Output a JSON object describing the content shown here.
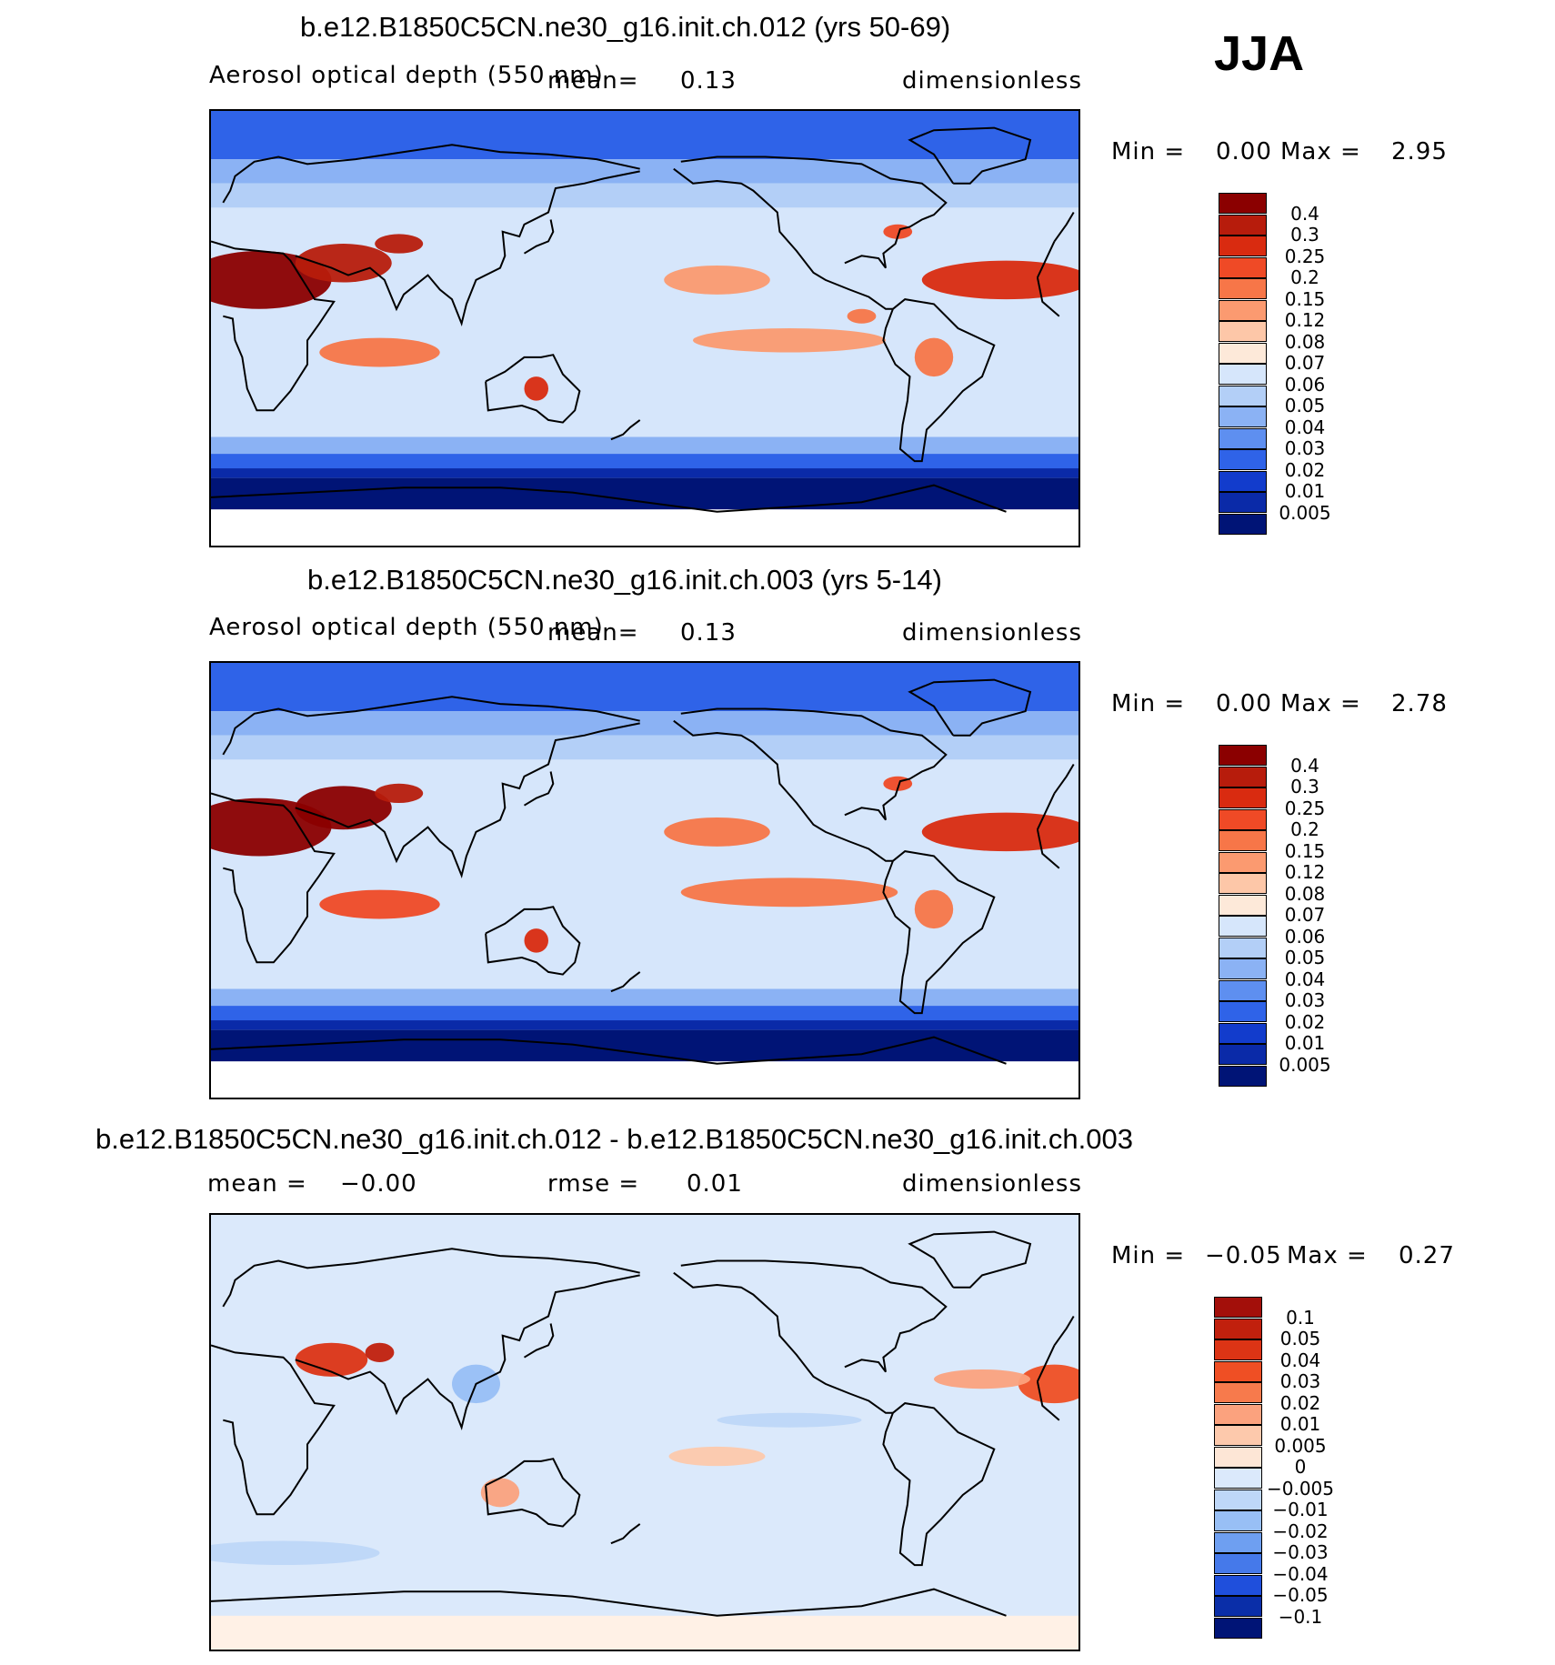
{
  "season": "JJA",
  "panels": [
    {
      "title": "b.e12.B1850C5CN.ne30_g16.init.ch.012 (yrs 50-69)",
      "variable": "Aerosol optical depth (550 nm)",
      "mean_label": "mean=",
      "mean_value": "0.13",
      "units": "dimensionless",
      "min_label": "Min =",
      "min_value": "0.00",
      "max_label": "Max =",
      "max_value": "2.95",
      "map_name": "Global map of aerosol optical depth, case 012"
    },
    {
      "title": "b.e12.B1850C5CN.ne30_g16.init.ch.003 (yrs 5-14)",
      "variable": "Aerosol optical depth (550 nm)",
      "mean_label": "mean=",
      "mean_value": "0.13",
      "units": "dimensionless",
      "min_label": "Min =",
      "min_value": "0.00",
      "max_label": "Max =",
      "max_value": "2.78",
      "map_name": "Global map of aerosol optical depth, case 003"
    },
    {
      "title": "b.e12.B1850C5CN.ne30_g16.init.ch.012 - b.e12.B1850C5CN.ne30_g16.init.ch.003",
      "mean_label": "mean =",
      "mean_value": "−0.00",
      "rmse_label": "rmse =",
      "rmse_value": "0.01",
      "units": "dimensionless",
      "min_label": "Min =",
      "min_value": "−0.05",
      "max_label": "Max =",
      "max_value": "0.27",
      "map_name": "Global map of difference 012 minus 003"
    }
  ],
  "colorbars": {
    "aod": {
      "levels": [
        "0.4",
        "0.3",
        "0.25",
        "0.2",
        "0.15",
        "0.12",
        "0.08",
        "0.07",
        "0.06",
        "0.05",
        "0.04",
        "0.03",
        "0.02",
        "0.01",
        "0.005"
      ],
      "colors": [
        "#8b0000",
        "#b71c0c",
        "#d92b10",
        "#ef4a26",
        "#f77648",
        "#fb9a70",
        "#fdc7a8",
        "#fde9d9",
        "#d6e6fb",
        "#b3cff7",
        "#8bb2f4",
        "#5e8ff0",
        "#2f63e8",
        "#123ccc",
        "#0a2aa8",
        "#001476"
      ]
    },
    "diff": {
      "levels": [
        "0.1",
        "0.05",
        "0.04",
        "0.03",
        "0.02",
        "0.01",
        "0.005",
        "0",
        "−0.005",
        "−0.01",
        "−0.02",
        "−0.03",
        "−0.04",
        "−0.05",
        "−0.1"
      ],
      "colors": [
        "#a30f0a",
        "#c1200d",
        "#dc3415",
        "#ef4f24",
        "#f77a4c",
        "#fba27e",
        "#fdc9ac",
        "#fde6d6",
        "#dbe9fb",
        "#bed7f8",
        "#98bff5",
        "#6e9ff1",
        "#4579ea",
        "#1f4fdc",
        "#0a2ea8",
        "#001476"
      ]
    }
  },
  "map_fields": {
    "case012": [
      {
        "lon": -150,
        "lat": 20,
        "rx": 22,
        "ry": 6,
        "level": 10
      },
      {
        "lon": -30,
        "lat": 20,
        "rx": 35,
        "ry": 8,
        "level": 13
      },
      {
        "lon": -120,
        "lat": -5,
        "rx": 40,
        "ry": 5,
        "level": 10
      },
      {
        "lon": 20,
        "lat": 20,
        "rx": 30,
        "ry": 12,
        "level": 15
      },
      {
        "lon": 55,
        "lat": 27,
        "rx": 20,
        "ry": 8,
        "level": 14
      },
      {
        "lon": 78,
        "lat": 35,
        "rx": 10,
        "ry": 4,
        "level": 14
      },
      {
        "lon": 70,
        "lat": -10,
        "rx": 25,
        "ry": 6,
        "level": 11
      },
      {
        "lon": 135,
        "lat": -25,
        "rx": 5,
        "ry": 5,
        "level": 13
      },
      {
        "lon": -60,
        "lat": -12,
        "rx": 8,
        "ry": 8,
        "level": 11
      },
      {
        "lon": -90,
        "lat": 5,
        "rx": 6,
        "ry": 3,
        "level": 11
      },
      {
        "lon": -75,
        "lat": 40,
        "rx": 6,
        "ry": 3,
        "level": 12
      }
    ],
    "case003": [
      {
        "lon": -150,
        "lat": 20,
        "rx": 22,
        "ry": 6,
        "level": 11
      },
      {
        "lon": -30,
        "lat": 20,
        "rx": 35,
        "ry": 8,
        "level": 13
      },
      {
        "lon": -120,
        "lat": -5,
        "rx": 45,
        "ry": 6,
        "level": 11
      },
      {
        "lon": 20,
        "lat": 22,
        "rx": 30,
        "ry": 12,
        "level": 15
      },
      {
        "lon": 55,
        "lat": 30,
        "rx": 20,
        "ry": 9,
        "level": 15
      },
      {
        "lon": 78,
        "lat": 36,
        "rx": 10,
        "ry": 4,
        "level": 14
      },
      {
        "lon": 70,
        "lat": -10,
        "rx": 25,
        "ry": 6,
        "level": 12
      },
      {
        "lon": 135,
        "lat": -25,
        "rx": 5,
        "ry": 5,
        "level": 13
      },
      {
        "lon": -60,
        "lat": -12,
        "rx": 8,
        "ry": 8,
        "level": 11
      },
      {
        "lon": -75,
        "lat": 40,
        "rx": 6,
        "ry": 3,
        "level": 12
      }
    ],
    "diff": [
      {
        "lon": -10,
        "lat": 20,
        "rx": 15,
        "ry": 8,
        "level": 12
      },
      {
        "lon": 50,
        "lat": 30,
        "rx": 15,
        "ry": 7,
        "level": 13
      },
      {
        "lon": 70,
        "lat": 33,
        "rx": 6,
        "ry": 4,
        "level": 14
      },
      {
        "lon": -40,
        "lat": 22,
        "rx": 20,
        "ry": 4,
        "level": 10
      },
      {
        "lon": -120,
        "lat": 5,
        "rx": 30,
        "ry": 3,
        "level": 6
      },
      {
        "lon": 120,
        "lat": -25,
        "rx": 8,
        "ry": 6,
        "level": 10
      },
      {
        "lon": -150,
        "lat": -10,
        "rx": 20,
        "ry": 4,
        "level": 9
      },
      {
        "lon": 30,
        "lat": -50,
        "rx": 40,
        "ry": 5,
        "level": 6
      },
      {
        "lon": 110,
        "lat": 20,
        "rx": 10,
        "ry": 8,
        "level": 5
      }
    ]
  }
}
